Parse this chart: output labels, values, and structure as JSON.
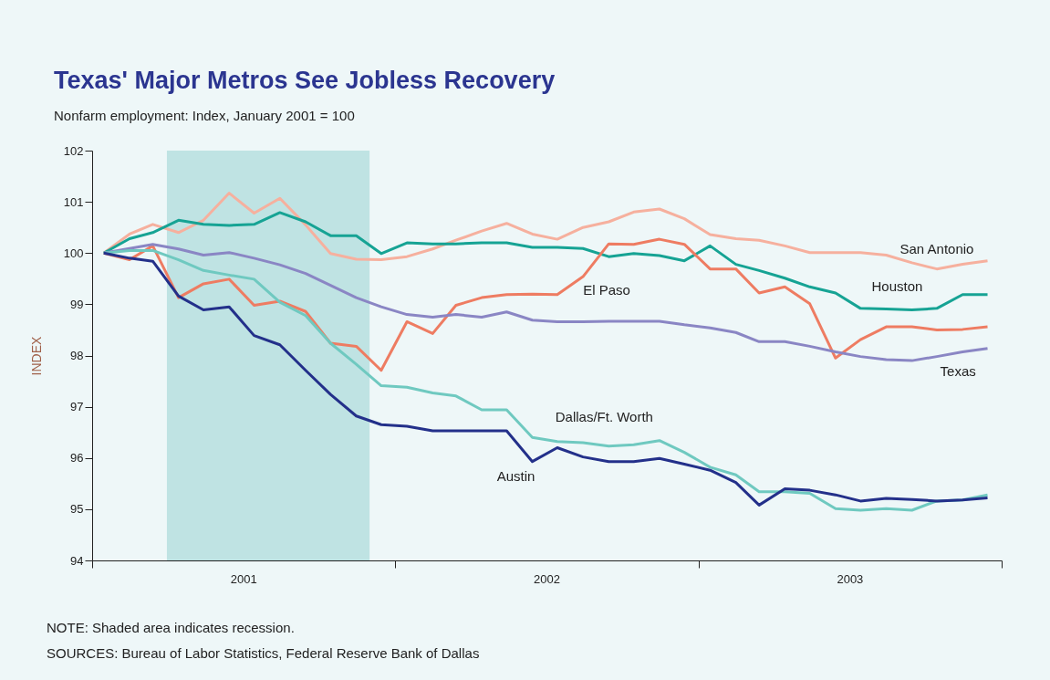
{
  "chart_data": {
    "type": "line",
    "title": "Texas' Major Metros See Jobless Recovery",
    "subtitle": "Nonfarm employment: Index, January 2001 = 100",
    "ylabel": "INDEX",
    "x": [
      "2001-01-15",
      "2001-02-15",
      "2001-03-15",
      "2001-04-15",
      "2001-05-15",
      "2001-06-15",
      "2001-07-15",
      "2001-08-15",
      "2001-09-15",
      "2001-10-15",
      "2001-11-15",
      "2001-12-15",
      "2002-01-15",
      "2002-02-15",
      "2002-03-15",
      "2002-04-15",
      "2002-05-15",
      "2002-06-15",
      "2002-07-15",
      "2002-08-15",
      "2002-09-15",
      "2002-10-15",
      "2002-11-15",
      "2002-12-15",
      "2003-01-15",
      "2003-02-15",
      "2003-03-15",
      "2003-04-15",
      "2003-05-15",
      "2003-06-15",
      "2003-07-15",
      "2003-08-15",
      "2003-09-15",
      "2003-10-15",
      "2003-11-15",
      "2003-12-15"
    ],
    "series": [
      {
        "name": "San Antonio",
        "color": "#f6b09e",
        "values": [
          100,
          100.37,
          100.56,
          100.4,
          100.64,
          101.17,
          100.78,
          101.07,
          100.55,
          99.99,
          99.88,
          99.87,
          99.93,
          100.08,
          100.25,
          100.43,
          100.58,
          100.37,
          100.27,
          100.5,
          100.61,
          100.8,
          100.86,
          100.67,
          100.36,
          100.28,
          100.25,
          100.14,
          100.01,
          100.01,
          100.01,
          99.96,
          99.81,
          99.69,
          99.78,
          99.85
        ]
      },
      {
        "name": "Houston",
        "color": "#16a394",
        "values": [
          100,
          100.28,
          100.4,
          100.64,
          100.56,
          100.54,
          100.56,
          100.79,
          100.61,
          100.34,
          100.34,
          99.99,
          100.2,
          100.18,
          100.18,
          100.2,
          100.2,
          100.11,
          100.11,
          100.09,
          99.93,
          99.99,
          99.95,
          99.85,
          100.14,
          99.78,
          99.66,
          99.51,
          99.34,
          99.22,
          98.92,
          98.91,
          98.89,
          98.92,
          99.19,
          99.19
        ]
      },
      {
        "name": "El Paso",
        "color": "#ee7c62",
        "values": [
          100,
          99.87,
          100.14,
          99.13,
          99.4,
          99.49,
          98.98,
          99.06,
          98.86,
          98.24,
          98.18,
          97.71,
          98.66,
          98.43,
          98.98,
          99.13,
          99.19,
          99.2,
          99.19,
          99.54,
          100.18,
          100.17,
          100.27,
          100.17,
          99.69,
          99.69,
          99.22,
          99.34,
          99.01,
          97.95,
          98.31,
          98.56,
          98.56,
          98.5,
          98.51,
          98.56
        ]
      },
      {
        "name": "Texas",
        "color": "#8a86c4",
        "values": [
          100,
          100.09,
          100.17,
          100.08,
          99.96,
          100.01,
          99.9,
          99.77,
          99.6,
          99.37,
          99.13,
          98.95,
          98.8,
          98.75,
          98.8,
          98.75,
          98.85,
          98.69,
          98.66,
          98.66,
          98.67,
          98.67,
          98.67,
          98.6,
          98.54,
          98.45,
          98.27,
          98.27,
          98.18,
          98.07,
          97.98,
          97.92,
          97.9,
          97.98,
          98.07,
          98.14
        ]
      },
      {
        "name": "Dallas/Ft. Worth",
        "color": "#6fc9c0",
        "values": [
          100,
          100.05,
          100.05,
          99.87,
          99.66,
          99.57,
          99.49,
          99.04,
          98.78,
          98.24,
          97.83,
          97.41,
          97.38,
          97.27,
          97.21,
          96.94,
          96.94,
          96.4,
          96.32,
          96.3,
          96.23,
          96.26,
          96.34,
          96.11,
          95.82,
          95.67,
          95.34,
          95.34,
          95.31,
          95.01,
          94.98,
          95.01,
          94.98,
          95.16,
          95.18,
          95.28
        ]
      },
      {
        "name": "Austin",
        "color": "#23308a",
        "values": [
          100,
          99.9,
          99.84,
          99.16,
          98.89,
          98.95,
          98.39,
          98.21,
          97.71,
          97.24,
          96.82,
          96.65,
          96.62,
          96.53,
          96.53,
          96.53,
          96.53,
          95.93,
          96.2,
          96.02,
          95.93,
          95.93,
          95.99,
          95.88,
          95.76,
          95.52,
          95.08,
          95.4,
          95.37,
          95.28,
          95.16,
          95.21,
          95.19,
          95.16,
          95.18,
          95.22
        ]
      }
    ],
    "xlim": [
      "2001-01-01",
      "2004-01-01"
    ],
    "xticks": [
      {
        "value": "2001-01-01",
        "label": null
      },
      {
        "value": "2001-07-02",
        "label": "2001"
      },
      {
        "value": "2002-01-01",
        "label": null
      },
      {
        "value": "2002-07-02",
        "label": "2002"
      },
      {
        "value": "2003-01-01",
        "label": null
      },
      {
        "value": "2003-07-02",
        "label": "2003"
      },
      {
        "value": "2004-01-01",
        "label": null
      }
    ],
    "ylim": [
      94,
      102
    ],
    "yticks": [
      94,
      95,
      96,
      97,
      98,
      99,
      100,
      101,
      102
    ],
    "bands": [
      {
        "axis": "x",
        "from": "2001-04-01",
        "to": "2001-12-01",
        "color": "#bfe3e3"
      }
    ],
    "annotations": [
      "NOTE:  Shaded area indicates recession.",
      "SOURCES:  Bureau of Labor Statistics, Federal Reserve Bank of Dallas"
    ]
  }
}
